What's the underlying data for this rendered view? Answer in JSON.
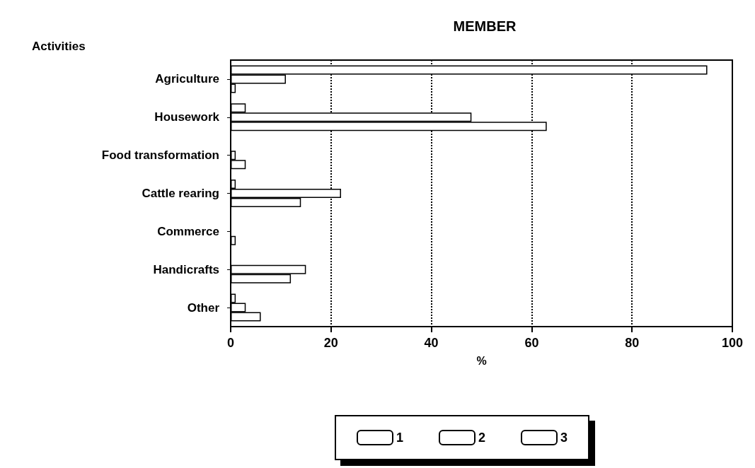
{
  "chart_data": {
    "type": "bar",
    "orientation": "horizontal",
    "title": "MEMBER",
    "ylabel": "Activities",
    "xlabel": "%",
    "categories": [
      "Agriculture",
      "Housework",
      "Food transformation",
      "Cattle rearing",
      "Commerce",
      "Handicrafts",
      "Other"
    ],
    "series": [
      {
        "name": "1",
        "color": "#ffffff",
        "values": [
          95,
          3,
          0,
          1,
          0,
          0,
          1
        ]
      },
      {
        "name": "2",
        "color": "#ffffff",
        "values": [
          11,
          48,
          1,
          22,
          0,
          15,
          3
        ]
      },
      {
        "name": "3",
        "color": "#ffffff",
        "values": [
          1,
          63,
          3,
          14,
          1,
          12,
          6
        ]
      }
    ],
    "xlim": [
      0,
      100
    ],
    "xticks": [
      0,
      20,
      40,
      60,
      80,
      100
    ],
    "grid": "x",
    "legend": "bottom"
  }
}
